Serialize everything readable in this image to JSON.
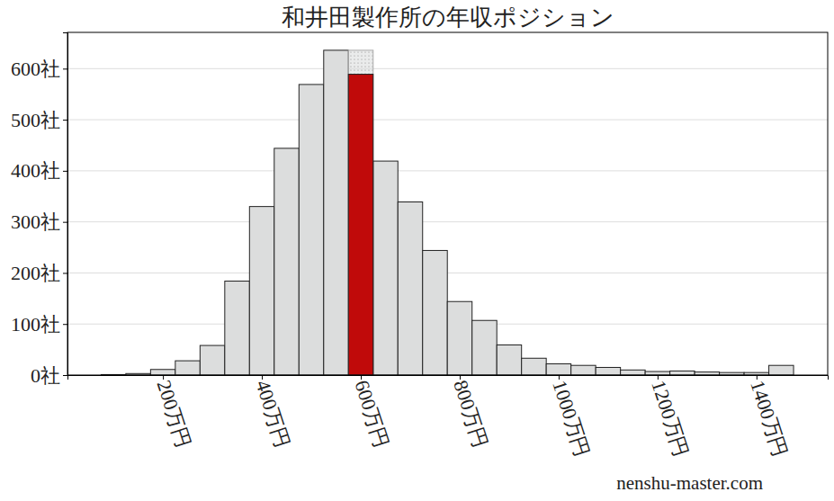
{
  "chart_data": {
    "type": "histogram",
    "title": "和井田製作所の年収ポジション",
    "bins": [
      75,
      125,
      175,
      225,
      275,
      325,
      375,
      425,
      475,
      525,
      575,
      625,
      675,
      725,
      775,
      825,
      875,
      925,
      975,
      1025,
      1075,
      1125,
      1175,
      1225,
      1275,
      1325,
      1375,
      1425,
      1475
    ],
    "series": [
      {
        "color": "#dcdddd",
        "values": [
          1,
          3,
          11,
          28,
          58,
          184,
          330,
          444,
          569,
          636,
          636,
          419,
          339,
          244,
          144,
          107,
          59,
          33,
          22,
          19,
          15,
          10,
          7,
          8,
          6,
          5,
          5,
          19
        ]
      },
      {
        "color": "#c00a0a",
        "values": [
          null,
          null,
          null,
          null,
          null,
          null,
          null,
          null,
          null,
          null,
          589,
          null,
          null,
          null,
          null,
          null,
          null,
          null,
          null,
          null,
          null,
          null,
          null,
          null,
          null,
          null,
          null,
          null
        ]
      }
    ],
    "xlim": [
      7,
      1544
    ],
    "ylim": [
      0,
      671
    ],
    "xticks": [
      {
        "value": 200,
        "label": "200万円"
      },
      {
        "value": 400,
        "label": "400万円"
      },
      {
        "value": 600,
        "label": "600万円"
      },
      {
        "value": 800,
        "label": "800万円"
      },
      {
        "value": 1000,
        "label": "1000万円"
      },
      {
        "value": 1200,
        "label": "1200万円"
      },
      {
        "value": 1400,
        "label": "1400万円"
      }
    ],
    "yticks": [
      {
        "value": 0,
        "label": "0社"
      },
      {
        "value": 100,
        "label": "100社"
      },
      {
        "value": 200,
        "label": "200社"
      },
      {
        "value": 300,
        "label": "300社"
      },
      {
        "value": 400,
        "label": "400社"
      },
      {
        "value": 500,
        "label": "500社"
      },
      {
        "value": 600,
        "label": "600社"
      }
    ],
    "grid": true,
    "annotations": [
      "nenshu-master.com"
    ]
  }
}
